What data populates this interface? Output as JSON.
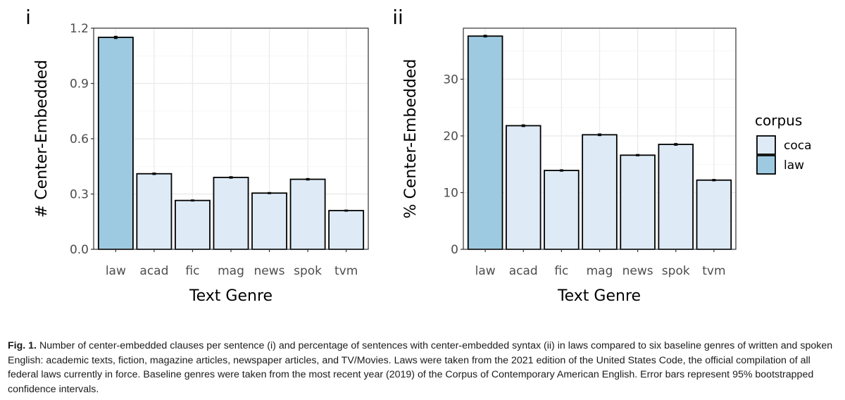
{
  "chart_data": [
    {
      "type": "bar",
      "panel_label": "i",
      "categories": [
        "law",
        "acad",
        "fic",
        "mag",
        "news",
        "spok",
        "tvm"
      ],
      "values": [
        1.15,
        0.41,
        0.265,
        0.39,
        0.305,
        0.38,
        0.21
      ],
      "error_bars": [
        0.006,
        0.004,
        0.003,
        0.004,
        0.003,
        0.004,
        0.003
      ],
      "corpus": [
        "law",
        "coca",
        "coca",
        "coca",
        "coca",
        "coca",
        "coca"
      ],
      "xlabel": "Text Genre",
      "ylabel": "# Center-Embedded",
      "ylim": [
        0,
        1.2
      ],
      "yticks": [
        "0.0",
        "0.3",
        "0.6",
        "0.9",
        "1.2"
      ],
      "grid": true
    },
    {
      "type": "bar",
      "panel_label": "ii",
      "categories": [
        "law",
        "acad",
        "fic",
        "mag",
        "news",
        "spok",
        "tvm"
      ],
      "values": [
        37.6,
        21.8,
        13.9,
        20.2,
        16.6,
        18.5,
        12.2
      ],
      "error_bars": [
        0.15,
        0.15,
        0.12,
        0.15,
        0.12,
        0.15,
        0.12
      ],
      "corpus": [
        "law",
        "coca",
        "coca",
        "coca",
        "coca",
        "coca",
        "coca"
      ],
      "xlabel": "Text Genre",
      "ylabel": "% Center-Embedded",
      "ylim": [
        0,
        39
      ],
      "yticks": [
        "0",
        "10",
        "20",
        "30"
      ],
      "grid": true
    }
  ],
  "legend": {
    "title": "corpus",
    "placement": "right",
    "items": [
      {
        "label": "coca",
        "color": "#deebf7"
      },
      {
        "label": "law",
        "color": "#9ecae1"
      }
    ]
  },
  "caption": {
    "label": "Fig. 1.",
    "text": " Number of center-embedded clauses per sentence (i) and percentage of sentences with center-embedded syntax (ii) in laws compared to six baseline genres of written and spoken English: academic texts, fiction, magazine articles, newspaper articles, and TV/Movies. Laws were taken from the 2021 edition of the United States Code, the official compilation of all federal laws currently in force. Baseline genres were taken from the most recent year (2019) of the Corpus of Contemporary American English. Error bars represent 95% bootstrapped confidence intervals."
  }
}
